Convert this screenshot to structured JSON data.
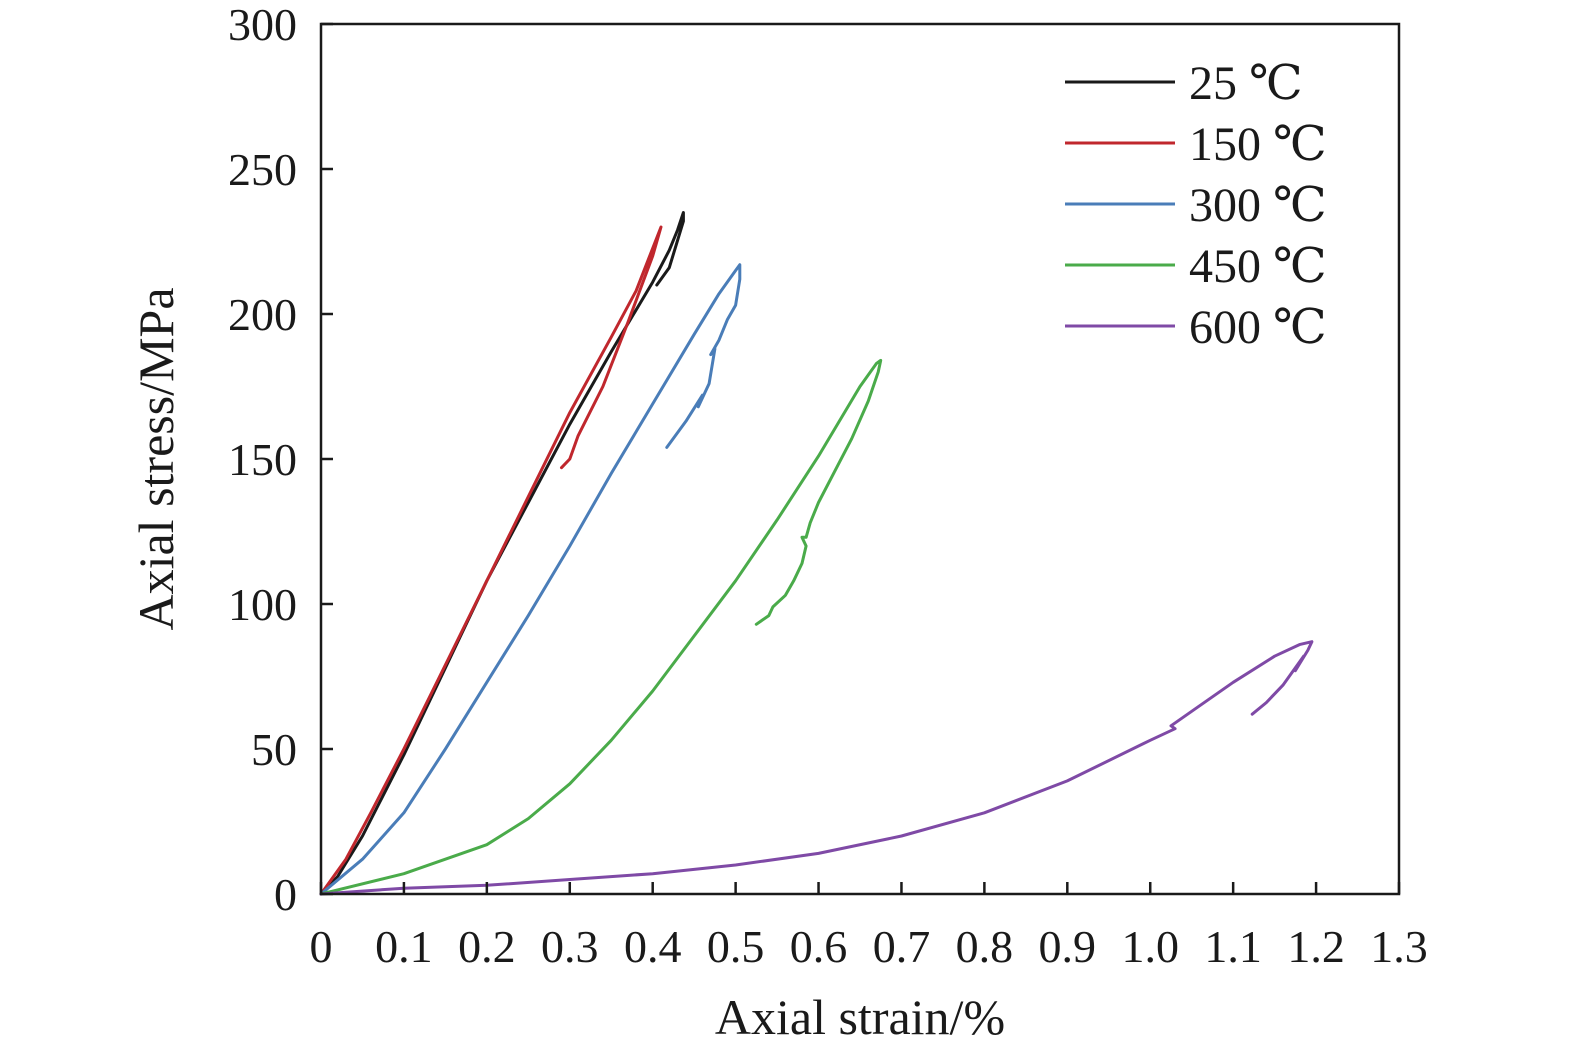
{
  "chart_data": {
    "type": "line",
    "xlabel": "Axial strain/%",
    "ylabel": "Axial stress/MPa",
    "xlim": [
      0,
      1.3
    ],
    "ylim": [
      0,
      300
    ],
    "x_ticks": [
      "0",
      "0.1",
      "0.2",
      "0.3",
      "0.4",
      "0.5",
      "0.6",
      "0.7",
      "0.8",
      "0.9",
      "1.0",
      "1.1",
      "1.2",
      "1.3"
    ],
    "y_ticks": [
      "0",
      "50",
      "100",
      "150",
      "200",
      "250",
      "300"
    ],
    "grid": false,
    "legend_position": "top-right",
    "series": [
      {
        "name": "25 ℃",
        "color": "#1a1a1a",
        "points": [
          [
            0,
            0
          ],
          [
            0.02,
            6
          ],
          [
            0.05,
            20
          ],
          [
            0.1,
            48
          ],
          [
            0.15,
            78
          ],
          [
            0.2,
            108
          ],
          [
            0.25,
            135
          ],
          [
            0.3,
            162
          ],
          [
            0.35,
            187
          ],
          [
            0.4,
            211
          ],
          [
            0.42,
            222
          ],
          [
            0.43,
            229
          ],
          [
            0.437,
            235
          ],
          [
            0.437,
            232
          ],
          [
            0.42,
            216
          ],
          [
            0.405,
            210
          ]
        ]
      },
      {
        "name": "150 ℃",
        "color": "#c0272d",
        "points": [
          [
            0,
            0
          ],
          [
            0.03,
            12
          ],
          [
            0.06,
            28
          ],
          [
            0.1,
            50
          ],
          [
            0.15,
            79
          ],
          [
            0.2,
            108
          ],
          [
            0.25,
            137
          ],
          [
            0.3,
            166
          ],
          [
            0.35,
            192
          ],
          [
            0.38,
            208
          ],
          [
            0.41,
            230
          ],
          [
            0.4,
            220
          ],
          [
            0.37,
            197
          ],
          [
            0.34,
            175
          ],
          [
            0.31,
            158
          ],
          [
            0.3,
            150
          ],
          [
            0.29,
            147
          ]
        ]
      },
      {
        "name": "300 ℃",
        "color": "#4a7db8",
        "points": [
          [
            0,
            0
          ],
          [
            0.05,
            12
          ],
          [
            0.1,
            28
          ],
          [
            0.15,
            50
          ],
          [
            0.2,
            73
          ],
          [
            0.25,
            96
          ],
          [
            0.3,
            120
          ],
          [
            0.35,
            145
          ],
          [
            0.4,
            169
          ],
          [
            0.45,
            193
          ],
          [
            0.48,
            207
          ],
          [
            0.5,
            215
          ],
          [
            0.505,
            217
          ],
          [
            0.505,
            212
          ],
          [
            0.5,
            203
          ],
          [
            0.49,
            198
          ],
          [
            0.48,
            191
          ],
          [
            0.47,
            186
          ],
          [
            0.475,
            188
          ],
          [
            0.468,
            176
          ],
          [
            0.455,
            168
          ],
          [
            0.46,
            172
          ],
          [
            0.44,
            163
          ],
          [
            0.417,
            154
          ]
        ]
      },
      {
        "name": "450 ℃",
        "color": "#4aab4a",
        "points": [
          [
            0,
            0
          ],
          [
            0.1,
            7
          ],
          [
            0.2,
            17
          ],
          [
            0.25,
            26
          ],
          [
            0.3,
            38
          ],
          [
            0.35,
            53
          ],
          [
            0.4,
            70
          ],
          [
            0.45,
            89
          ],
          [
            0.5,
            108
          ],
          [
            0.55,
            129
          ],
          [
            0.6,
            151
          ],
          [
            0.65,
            175
          ],
          [
            0.67,
            183
          ],
          [
            0.675,
            184
          ],
          [
            0.672,
            180
          ],
          [
            0.66,
            170
          ],
          [
            0.64,
            157
          ],
          [
            0.62,
            146
          ],
          [
            0.6,
            135
          ],
          [
            0.59,
            128
          ],
          [
            0.585,
            123
          ],
          [
            0.58,
            123
          ],
          [
            0.585,
            120
          ],
          [
            0.58,
            114
          ],
          [
            0.57,
            108
          ],
          [
            0.56,
            103
          ],
          [
            0.545,
            99
          ],
          [
            0.54,
            96
          ],
          [
            0.525,
            93
          ]
        ]
      },
      {
        "name": "600 ℃",
        "color": "#7f4aa6",
        "points": [
          [
            0,
            0
          ],
          [
            0.1,
            2
          ],
          [
            0.2,
            3
          ],
          [
            0.3,
            5
          ],
          [
            0.4,
            7
          ],
          [
            0.5,
            10
          ],
          [
            0.6,
            14
          ],
          [
            0.7,
            20
          ],
          [
            0.8,
            28
          ],
          [
            0.9,
            39
          ],
          [
            1.0,
            53
          ],
          [
            1.03,
            57
          ],
          [
            1.025,
            58
          ],
          [
            1.05,
            63
          ],
          [
            1.1,
            73
          ],
          [
            1.15,
            82
          ],
          [
            1.18,
            86
          ],
          [
            1.195,
            87
          ],
          [
            1.19,
            84
          ],
          [
            1.175,
            77
          ],
          [
            1.185,
            82
          ],
          [
            1.16,
            72
          ],
          [
            1.14,
            66
          ],
          [
            1.123,
            62
          ]
        ]
      }
    ]
  }
}
